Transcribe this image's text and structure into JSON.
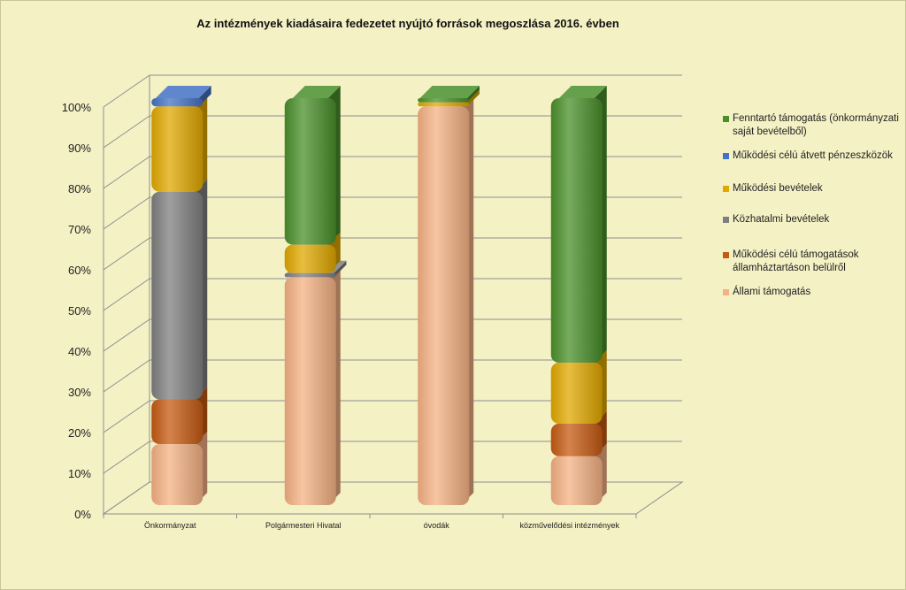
{
  "chart_data": {
    "type": "bar",
    "stacked": "percent",
    "style": "3d",
    "title": "Az intézmények kiadásaira fedezetet nyújtó források megoszlása 2016. évben",
    "categories": [
      "Önkormányzat",
      "Polgármesteri Hivatal",
      "óvodák",
      "közművelődési intézmények"
    ],
    "ylim": [
      0,
      100
    ],
    "yticks": [
      "0%",
      "10%",
      "20%",
      "30%",
      "40%",
      "50%",
      "60%",
      "70%",
      "80%",
      "90%",
      "100%"
    ],
    "grid": true,
    "legend_position": "right",
    "series": [
      {
        "name": "Állami támogatás",
        "color": "#f4b183",
        "values": [
          15,
          56,
          98,
          12
        ]
      },
      {
        "name": "Működési célú támogatások államháztartáson belülről",
        "color": "#c55a11",
        "values": [
          11,
          0,
          0,
          8
        ]
      },
      {
        "name": "Közhatalmi bevételek",
        "color": "#7f7f7f",
        "values": [
          51,
          1,
          0,
          0
        ]
      },
      {
        "name": "Működési bevételek",
        "color": "#e0a800",
        "values": [
          21,
          7,
          1,
          15
        ]
      },
      {
        "name": "Működési célú átvett pénzeszközök",
        "color": "#4472c4",
        "values": [
          2,
          0,
          0,
          0
        ]
      },
      {
        "name": "Fenntartó támogatás (önkormányzati saját bevételből)",
        "color": "#4a8f2a",
        "values": [
          0,
          36,
          1,
          65
        ]
      }
    ]
  },
  "legend": {
    "items": [
      {
        "label": "Fenntartó támogatás (önkormányzati saját bevételből)",
        "color": "#4a8f2a"
      },
      {
        "label": "Működési célú átvett pénzeszközök",
        "color": "#4472c4"
      },
      {
        "label": "Működési bevételek",
        "color": "#e0a800"
      },
      {
        "label": "Közhatalmi bevételek",
        "color": "#7f7f7f"
      },
      {
        "label": "Működési célú támogatások államháztartáson belülről",
        "color": "#c55a11"
      },
      {
        "label": "Állami támogatás",
        "color": "#f4b183"
      }
    ]
  }
}
